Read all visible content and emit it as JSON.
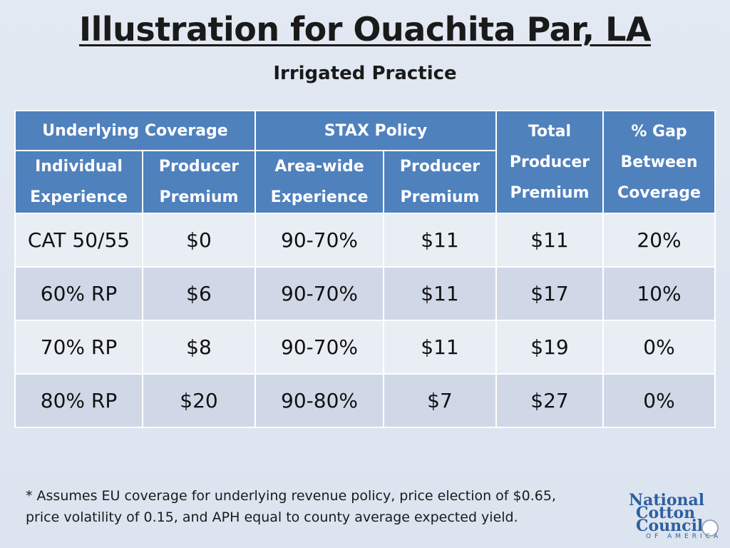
{
  "title": "Illustration for Ouachita Par, LA",
  "subtitle": "Irrigated Practice",
  "table": {
    "group_headers": {
      "underlying": "Underlying Coverage",
      "stax": "STAX Policy",
      "total": [
        "Total",
        "Producer",
        "Premium"
      ],
      "gap": [
        "% Gap",
        "Between",
        "Coverage"
      ]
    },
    "sub_headers": {
      "individual": [
        "Individual",
        "Experience"
      ],
      "producer1": [
        "Producer",
        "Premium"
      ],
      "areawide": [
        "Area-wide",
        "Experience"
      ],
      "producer2": [
        "Producer",
        "Premium"
      ]
    },
    "rows": [
      [
        "CAT 50/55",
        "$0",
        "90-70%",
        "$11",
        "$11",
        "20%"
      ],
      [
        "60% RP",
        "$6",
        "90-70%",
        "$11",
        "$17",
        "10%"
      ],
      [
        "70% RP",
        "$8",
        "90-70%",
        "$11",
        "$19",
        "0%"
      ],
      [
        "80% RP",
        "$20",
        "90-80%",
        "$7",
        "$27",
        "0%"
      ]
    ]
  },
  "footnote": {
    "line1": "* Assumes EU coverage for underlying revenue policy, price election of $0.65,",
    "line2": "price volatility of 0.15, and APH equal to county average expected yield."
  },
  "logo": {
    "line1": "National",
    "line2": "Cotton",
    "line3": "Council",
    "line4": "OF AMERICA"
  },
  "colors": {
    "header_blue": "#4f81bd",
    "row_light": "#e9edf4",
    "row_dark": "#d0d8e8",
    "logo_blue": "#2e5fa0"
  }
}
